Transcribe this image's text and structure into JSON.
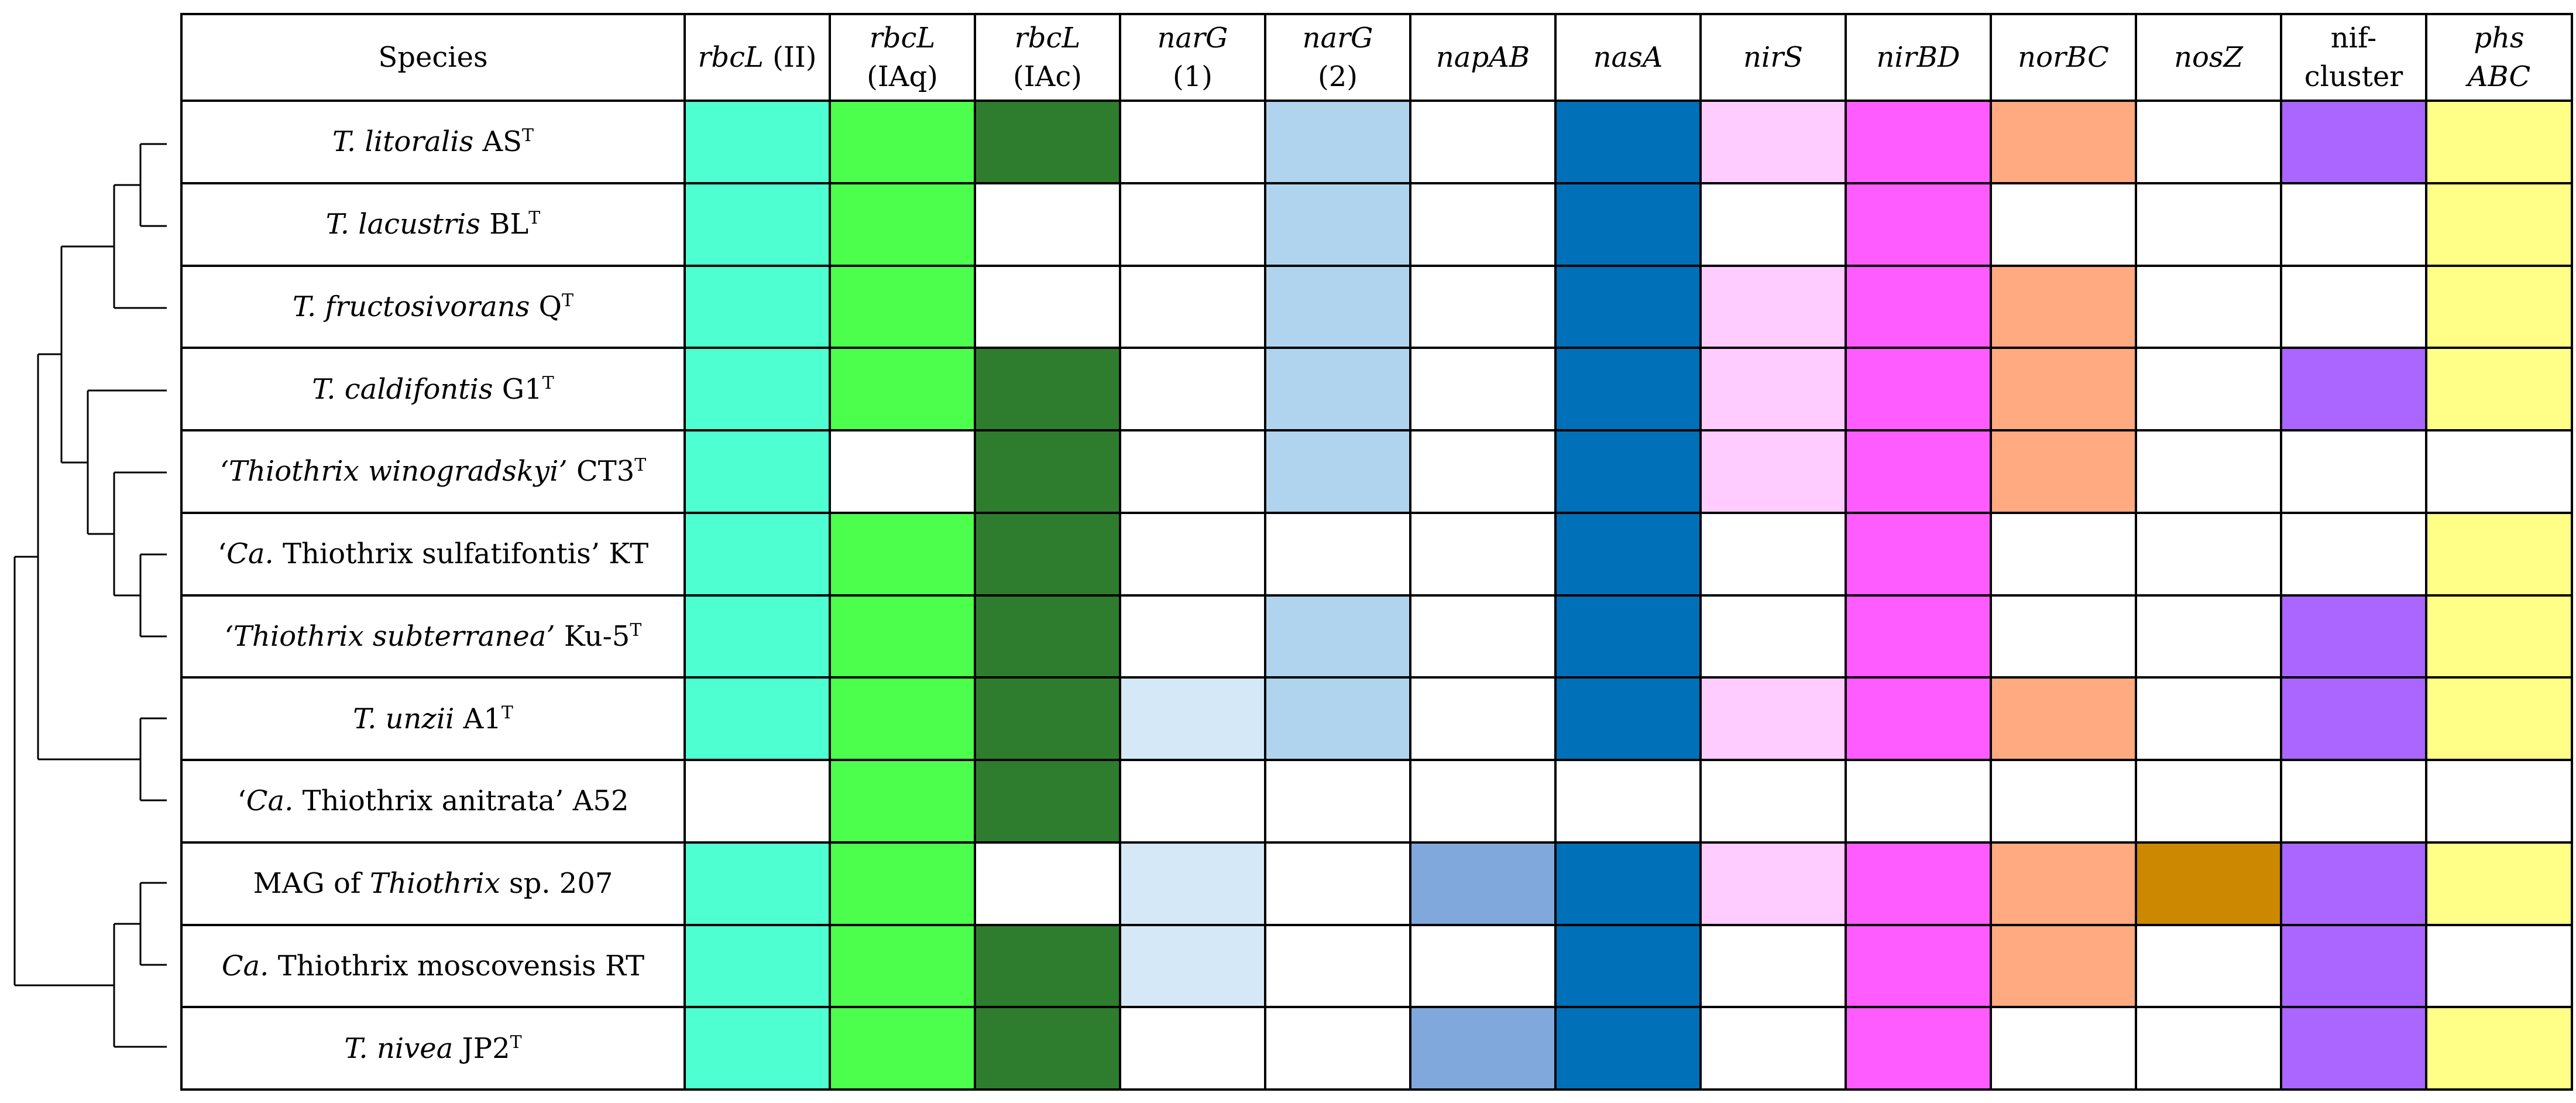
{
  "header": {
    "species": "Species",
    "columns": [
      {
        "l1": "rbcL",
        "l1_suffix": " (II)",
        "l2": "",
        "italic2": false
      },
      {
        "l1": "rbcL",
        "l1_suffix": "",
        "l2": "(IAq)",
        "italic2": false
      },
      {
        "l1": "rbcL",
        "l1_suffix": "",
        "l2": "(IAc)",
        "italic2": false
      },
      {
        "l1": "narG",
        "l1_suffix": "",
        "l2": "(1)",
        "italic2": false
      },
      {
        "l1": "narG",
        "l1_suffix": "",
        "l2": "(2)",
        "italic2": false
      },
      {
        "l1": "napAB",
        "l1_suffix": "",
        "l2": "",
        "italic2": false
      },
      {
        "l1": "nasA",
        "l1_suffix": "",
        "l2": "",
        "italic2": false
      },
      {
        "l1": "nirS",
        "l1_suffix": "",
        "l2": "",
        "italic2": false
      },
      {
        "l1": "nirBD",
        "l1_suffix": "",
        "l2": "",
        "italic2": false
      },
      {
        "l1": "norBC",
        "l1_suffix": "",
        "l2": "",
        "italic2": false
      },
      {
        "l1": "nosZ",
        "l1_suffix": "",
        "l2": "",
        "italic2": false
      },
      {
        "l1": "nif-",
        "l1_suffix": "",
        "l2": "cluster",
        "italic2": false,
        "plain1": true
      },
      {
        "l1": "phs",
        "l1_suffix": "",
        "l2": "ABC",
        "italic2": true
      }
    ]
  },
  "colors": {
    "rbcL_II": "#4dffd1",
    "rbcL_IAq": "#4dff4d",
    "rbcL_IAc": "#2e7d2e",
    "narG_1": "#d4e8f7",
    "narG_2": "#b0d4ee",
    "napAB": "#80a8dc",
    "nasA": "#0070b8",
    "nirS": "#ffccff",
    "nirBD": "#ff5cff",
    "norBC": "#ffaa80",
    "nosZ": "#cc8800",
    "nif": "#aa66ff",
    "phs": "#ffff88",
    "absent": "#ffffff",
    "grid": "#000000"
  },
  "column_keys": [
    "rbcL_II",
    "rbcL_IAq",
    "rbcL_IAc",
    "narG_1",
    "narG_2",
    "napAB",
    "nasA",
    "nirS",
    "nirBD",
    "norBC",
    "nosZ",
    "nif",
    "phs"
  ],
  "rows": [
    {
      "parts": [
        {
          "t": "T. litoralis",
          "i": true
        },
        {
          "t": " AS",
          "i": false
        },
        {
          "t": "T",
          "sup": true
        }
      ],
      "presence": [
        1,
        1,
        1,
        0,
        1,
        0,
        1,
        1,
        1,
        1,
        0,
        1,
        1
      ]
    },
    {
      "parts": [
        {
          "t": "T. lacustris",
          "i": true
        },
        {
          "t": " BL",
          "i": false
        },
        {
          "t": "T",
          "sup": true
        }
      ],
      "presence": [
        1,
        1,
        0,
        0,
        1,
        0,
        1,
        0,
        1,
        0,
        0,
        0,
        1
      ]
    },
    {
      "parts": [
        {
          "t": "T. fructosivorans",
          "i": true
        },
        {
          "t": " Q",
          "i": false
        },
        {
          "t": "T",
          "sup": true
        }
      ],
      "presence": [
        1,
        1,
        0,
        0,
        1,
        0,
        1,
        1,
        1,
        1,
        0,
        0,
        1
      ]
    },
    {
      "parts": [
        {
          "t": "T. caldifontis",
          "i": true
        },
        {
          "t": " G1",
          "i": false
        },
        {
          "t": "T",
          "sup": true
        }
      ],
      "presence": [
        1,
        1,
        1,
        0,
        1,
        0,
        1,
        1,
        1,
        1,
        0,
        1,
        1
      ]
    },
    {
      "parts": [
        {
          "t": "‘Thiothrix winogradskyi’",
          "i": true
        },
        {
          "t": " CT3",
          "i": false
        },
        {
          "t": "T",
          "sup": true
        }
      ],
      "presence": [
        1,
        0,
        1,
        0,
        1,
        0,
        1,
        1,
        1,
        1,
        0,
        0,
        0
      ]
    },
    {
      "parts": [
        {
          "t": "‘",
          "i": false
        },
        {
          "t": "Ca.",
          "i": true
        },
        {
          "t": " Thiothrix sulfatifontis’ KT",
          "i": false
        }
      ],
      "presence": [
        1,
        1,
        1,
        0,
        0,
        0,
        1,
        0,
        1,
        0,
        0,
        0,
        1
      ]
    },
    {
      "parts": [
        {
          "t": "‘Thiothrix subterranea’",
          "i": true
        },
        {
          "t": " Ku-5",
          "i": false
        },
        {
          "t": "T",
          "sup": true
        }
      ],
      "presence": [
        1,
        1,
        1,
        0,
        1,
        0,
        1,
        0,
        1,
        0,
        0,
        1,
        1
      ]
    },
    {
      "parts": [
        {
          "t": "T. unzii",
          "i": true
        },
        {
          "t": " A1",
          "i": false
        },
        {
          "t": "T",
          "sup": true
        }
      ],
      "presence": [
        1,
        1,
        1,
        1,
        1,
        0,
        1,
        1,
        1,
        1,
        0,
        1,
        1
      ]
    },
    {
      "parts": [
        {
          "t": "‘",
          "i": false
        },
        {
          "t": "Ca.",
          "i": true
        },
        {
          "t": " Thiothrix anitrata’ A52",
          "i": false
        }
      ],
      "presence": [
        0,
        1,
        1,
        0,
        0,
        0,
        0,
        0,
        0,
        0,
        0,
        0,
        0
      ]
    },
    {
      "parts": [
        {
          "t": "MAG of ",
          "i": false
        },
        {
          "t": "Thiothrix",
          "i": true
        },
        {
          "t": " sp. 207",
          "i": false
        }
      ],
      "presence": [
        1,
        1,
        0,
        1,
        0,
        1,
        1,
        1,
        1,
        1,
        1,
        1,
        1
      ]
    },
    {
      "parts": [
        {
          "t": "Ca.",
          "i": true
        },
        {
          "t": " Thiothrix moscovensis RT",
          "i": false
        }
      ],
      "presence": [
        1,
        1,
        1,
        1,
        0,
        0,
        1,
        0,
        1,
        1,
        0,
        1,
        0
      ]
    },
    {
      "parts": [
        {
          "t": "T. nivea",
          "i": true
        },
        {
          "t": " JP2",
          "i": false
        },
        {
          "t": "T",
          "sup": true
        }
      ],
      "presence": [
        1,
        1,
        1,
        0,
        0,
        1,
        1,
        0,
        1,
        0,
        0,
        1,
        1
      ]
    }
  ]
}
